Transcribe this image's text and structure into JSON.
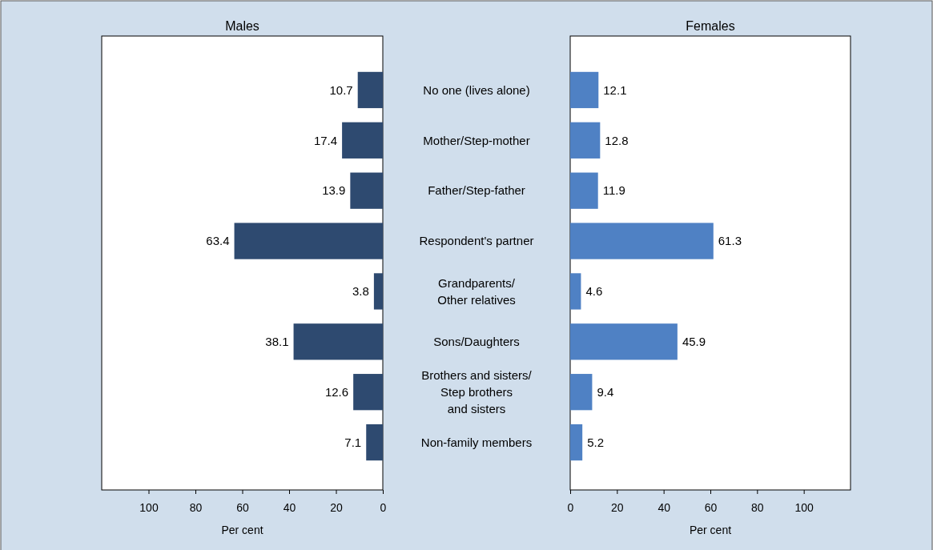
{
  "chart_data": [
    {
      "type": "bar",
      "orientation": "horizontal",
      "title": "Males",
      "xlabel": "Per cent",
      "categories": [
        "No one (lives alone)",
        "Mother/Step-mother",
        "Father/Step-father",
        "Respondent's partner",
        "Grandparents/\nOther relatives",
        "Sons/Daughters",
        "Brothers and sisters/\nStep brothers\nand sisters",
        "Non-family members"
      ],
      "values": [
        10.7,
        17.4,
        13.9,
        63.4,
        3.8,
        38.1,
        12.6,
        7.1
      ],
      "color": "#2e4a70",
      "xlim": [
        120,
        0
      ],
      "xticks": [
        100,
        80,
        60,
        40,
        20,
        0
      ],
      "data_labels": true
    },
    {
      "type": "bar",
      "orientation": "horizontal",
      "title": "Females",
      "xlabel": "Per cent",
      "categories": [
        null,
        null,
        null,
        null,
        null,
        null,
        null,
        null
      ],
      "values": [
        12.1,
        12.8,
        11.9,
        61.3,
        4.6,
        45.9,
        9.4,
        5.2
      ],
      "color": "#4f81c4",
      "xlim": [
        0,
        120
      ],
      "xticks": [
        0,
        20,
        40,
        60,
        80,
        100
      ],
      "data_labels": true,
      "tick_labels": "x"
    }
  ]
}
